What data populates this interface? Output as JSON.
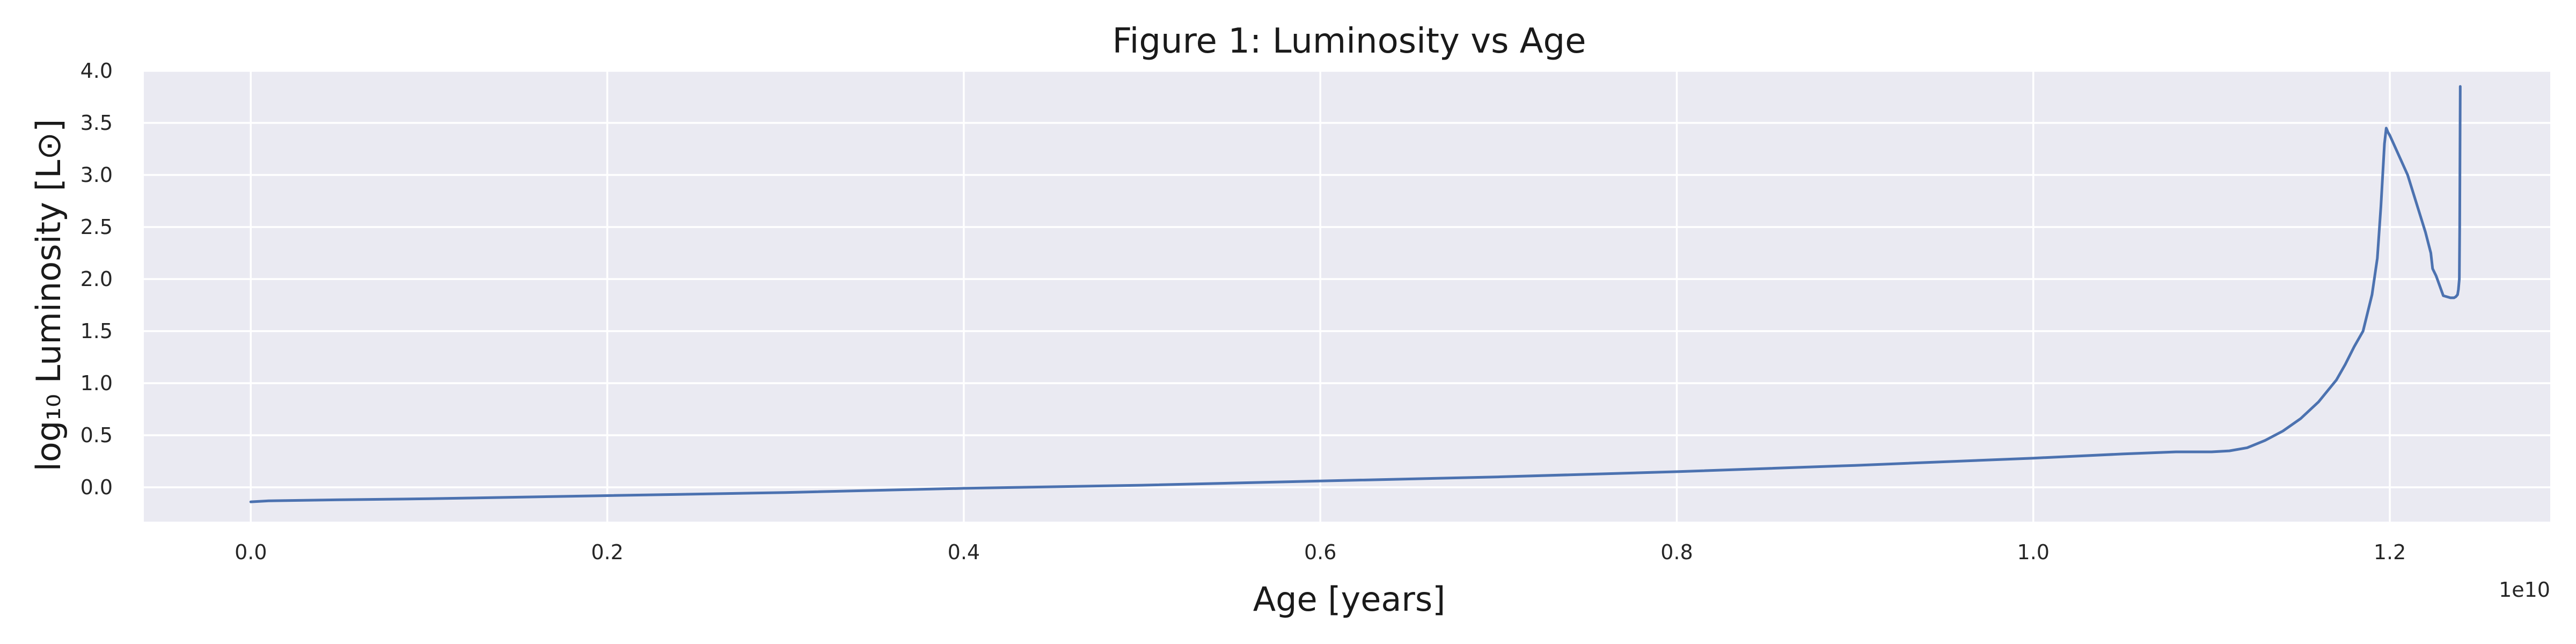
{
  "chart_data": {
    "type": "line",
    "title": "Figure 1: Luminosity vs Age",
    "xlabel": "Age [years]",
    "ylabel": "log₁₀ Luminosity [L⊙]",
    "x_offset_label": "1e10",
    "xlim": [
      -0.06,
      1.29
    ],
    "ylim": [
      -0.33,
      4.0
    ],
    "x_ticks": [
      0.0,
      0.2,
      0.4,
      0.6,
      0.8,
      1.0,
      1.2
    ],
    "x_tick_labels": [
      "0.0",
      "0.2",
      "0.4",
      "0.6",
      "0.8",
      "1.0",
      "1.2"
    ],
    "y_ticks": [
      0.0,
      0.5,
      1.0,
      1.5,
      2.0,
      2.5,
      3.0,
      3.5,
      4.0
    ],
    "y_tick_labels": [
      "0.0",
      "0.5",
      "1.0",
      "1.5",
      "2.0",
      "2.5",
      "3.0",
      "3.5",
      "4.0"
    ],
    "grid": true,
    "colors": {
      "background": "#eaeaf2",
      "grid": "#ffffff",
      "line": "#4c72b0"
    },
    "series": [
      {
        "x": [
          0.0,
          0.01,
          0.05,
          0.1,
          0.2,
          0.3,
          0.4,
          0.5,
          0.6,
          0.7,
          0.8,
          0.9,
          1.0,
          1.05,
          1.08,
          1.1,
          1.11,
          1.12,
          1.13,
          1.14,
          1.15,
          1.16,
          1.17,
          1.175,
          1.18,
          1.185,
          1.19,
          1.193,
          1.195,
          1.196,
          1.197,
          1.198,
          1.199,
          1.2,
          1.21,
          1.22,
          1.223,
          1.224,
          1.226,
          1.23,
          1.234,
          1.236,
          1.237,
          1.238,
          1.2385,
          1.239,
          1.2392,
          1.2395
        ],
        "y": [
          -0.14,
          -0.13,
          -0.12,
          -0.11,
          -0.08,
          -0.05,
          -0.01,
          0.02,
          0.06,
          0.1,
          0.15,
          0.21,
          0.28,
          0.32,
          0.34,
          0.34,
          0.35,
          0.38,
          0.45,
          0.54,
          0.66,
          0.82,
          1.03,
          1.18,
          1.35,
          1.5,
          1.85,
          2.2,
          2.7,
          3.0,
          3.3,
          3.45,
          3.41,
          3.38,
          3.0,
          2.45,
          2.25,
          2.1,
          2.03,
          1.84,
          1.82,
          1.82,
          1.83,
          1.85,
          1.9,
          2.0,
          2.5,
          3.85
        ]
      }
    ]
  }
}
